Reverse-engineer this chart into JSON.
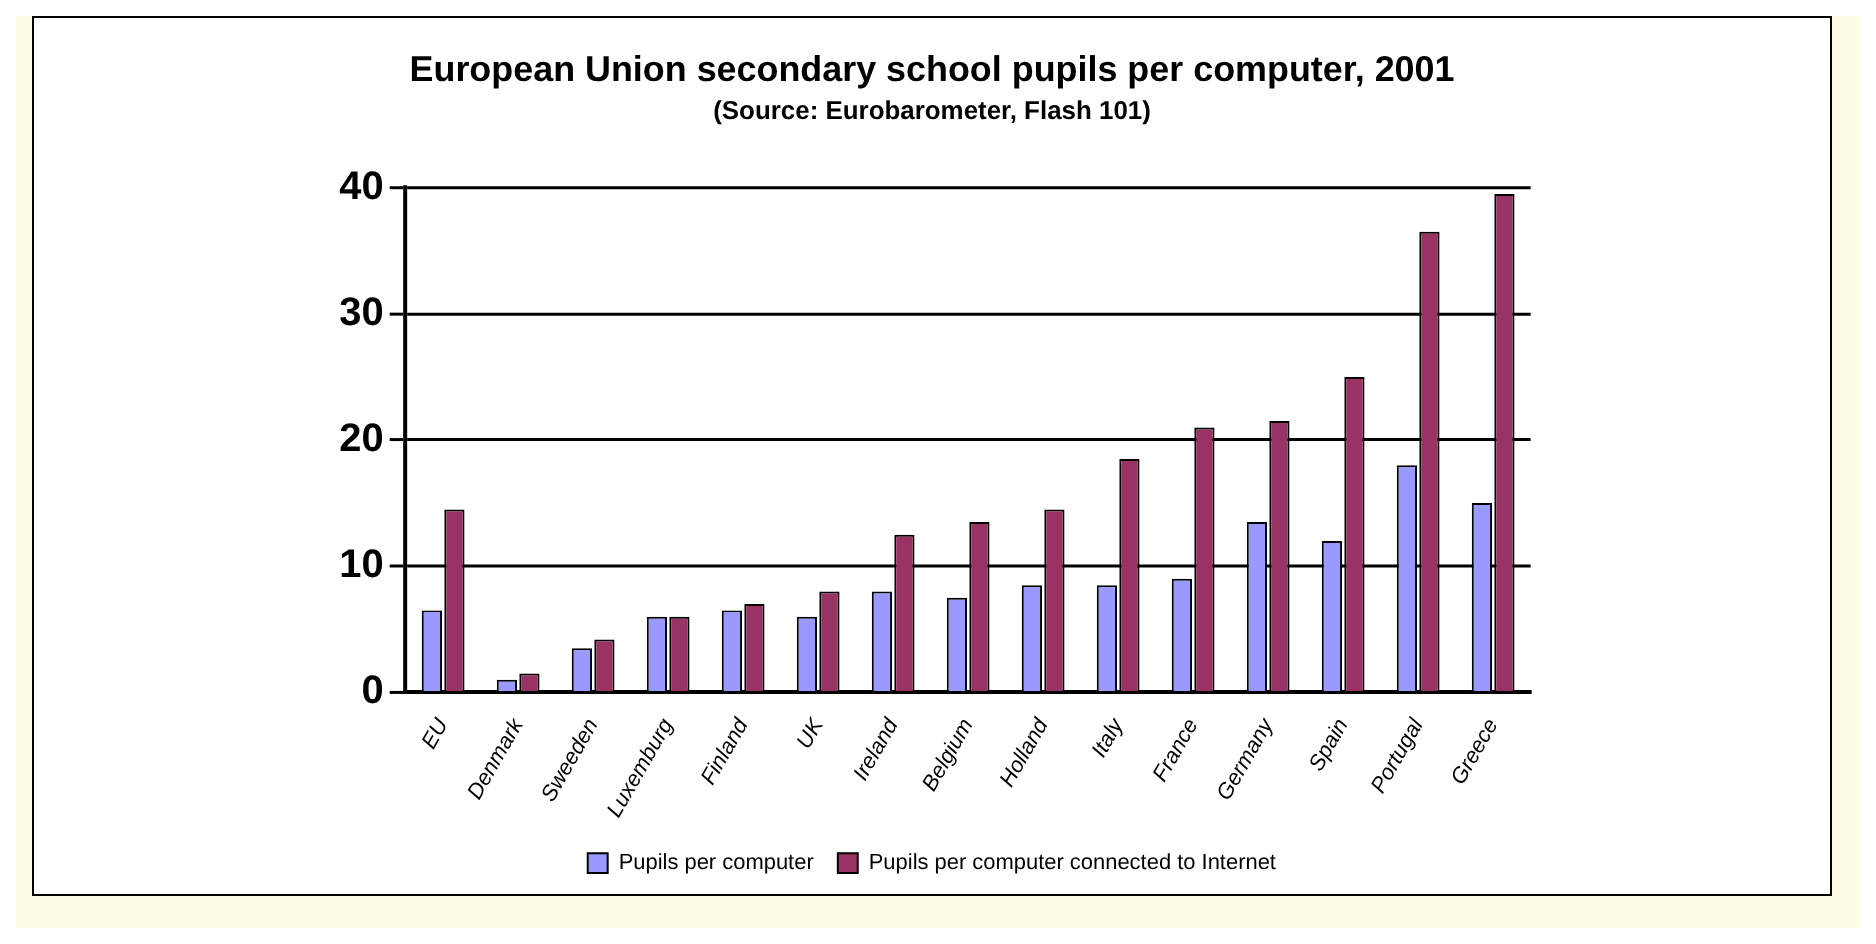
{
  "chart_data": {
    "type": "bar",
    "title": "European Union secondary school pupils per computer, 2001",
    "subtitle": "(Source: Eurobarometer, Flash 101)",
    "categories": [
      "EU",
      "Denmark",
      "Sweeden",
      "Luxemburg",
      "Finland",
      "UK",
      "Ireland",
      "Belgium",
      "Holland",
      "Italy",
      "France",
      "Germany",
      "Spain",
      "Portugal",
      "Greece"
    ],
    "series": [
      {
        "name": "Pupils per computer",
        "color": "#9999ff",
        "values": [
          6.5,
          1,
          3.5,
          6,
          6.5,
          6,
          8,
          7.5,
          8.5,
          8.5,
          9,
          13.5,
          12,
          18,
          15
        ]
      },
      {
        "name": "Pupils per computer connected to Internet",
        "color": "#993366",
        "values": [
          14.5,
          1.5,
          4.2,
          6,
          7,
          8,
          12.5,
          13.5,
          14.5,
          18.5,
          21,
          21.5,
          25,
          36.5,
          39.5
        ]
      }
    ],
    "ylim": [
      0,
      40
    ],
    "yticks": [
      0,
      10,
      20,
      30,
      40
    ],
    "grid": "y",
    "legend": "bottom"
  }
}
